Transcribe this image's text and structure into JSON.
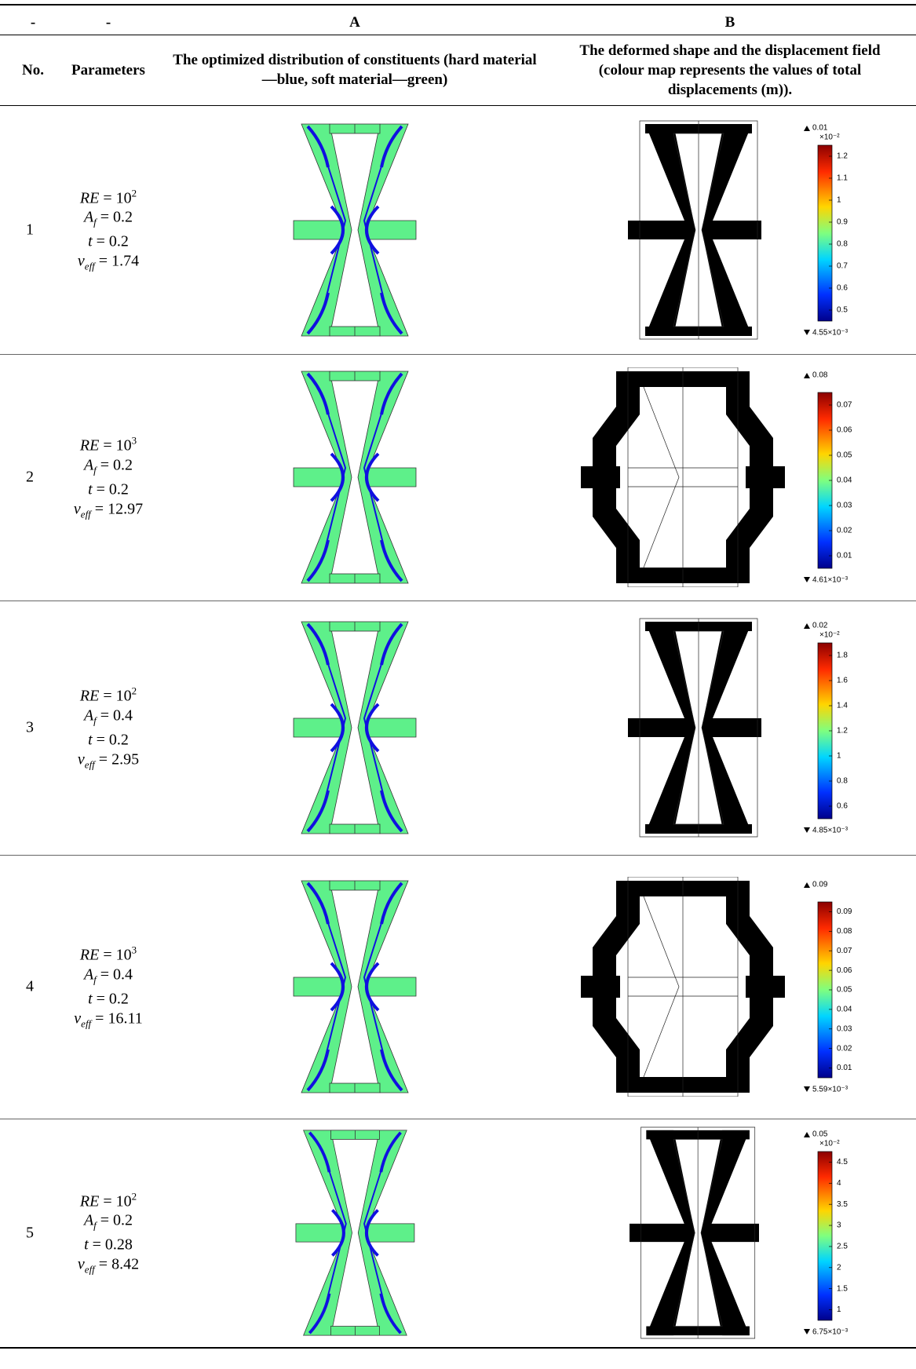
{
  "table": {
    "header": {
      "top": [
        "-",
        "-",
        "A",
        "B"
      ],
      "columns": [
        "No.",
        "Parameters",
        "The optimized distribution of constituents (hard material—blue, soft material—green)",
        "The deformed shape and the displacement field (colour map represents the values of total displacements (m))."
      ]
    },
    "rows": [
      {
        "no": "1",
        "parameters": [
          {
            "symbol": "RE",
            "text": " = 10",
            "sup": "2"
          },
          {
            "symbol": "A",
            "sub": "f",
            "text": " = 0.2"
          },
          {
            "symbol": "t",
            "text": " = 0.2"
          },
          {
            "symbol": "ν",
            "sub": "eff",
            "text": " = 1.74"
          }
        ],
        "colorbar": {
          "max": "0.01",
          "multiplier": "×10⁻²",
          "ticks": [
            "1.2",
            "1.1",
            "1",
            "0.9",
            "0.8",
            "0.7",
            "0.6",
            "0.5"
          ],
          "min": "4.55×10⁻³"
        }
      },
      {
        "no": "2",
        "parameters": [
          {
            "symbol": "RE",
            "text": " = 10",
            "sup": "3"
          },
          {
            "symbol": "A",
            "sub": "f",
            "text": " = 0.2"
          },
          {
            "symbol": "t",
            "text": " = 0.2"
          },
          {
            "symbol": "ν",
            "sub": "eff",
            "text": " = 12.97"
          }
        ],
        "colorbar": {
          "max": "0.08",
          "ticks": [
            "0.07",
            "0.06",
            "0.05",
            "0.04",
            "0.03",
            "0.02",
            "0.01"
          ],
          "min": "4.61×10⁻³"
        }
      },
      {
        "no": "3",
        "parameters": [
          {
            "symbol": "RE",
            "text": " = 10",
            "sup": "2"
          },
          {
            "symbol": "A",
            "sub": "f",
            "text": " = 0.4"
          },
          {
            "symbol": "t",
            "text": " = 0.2"
          },
          {
            "symbol": "ν",
            "sub": "eff",
            "text": " = 2.95"
          }
        ],
        "colorbar": {
          "max": "0.02",
          "multiplier": "×10⁻²",
          "ticks": [
            "1.8",
            "1.6",
            "1.4",
            "1.2",
            "1",
            "0.8",
            "0.6"
          ],
          "min": "4.85×10⁻³"
        }
      },
      {
        "no": "4",
        "parameters": [
          {
            "symbol": "RE",
            "text": " = 10",
            "sup": "3"
          },
          {
            "symbol": "A",
            "sub": "f",
            "text": " = 0.4"
          },
          {
            "symbol": "t",
            "text": " = 0.2"
          },
          {
            "symbol": "ν",
            "sub": "eff",
            "text": " = 16.11"
          }
        ],
        "colorbar": {
          "max": "0.09",
          "ticks": [
            "0.09",
            "0.08",
            "0.07",
            "0.06",
            "0.05",
            "0.04",
            "0.03",
            "0.02",
            "0.01"
          ],
          "min": "5.59×10⁻³"
        }
      },
      {
        "no": "5",
        "parameters": [
          {
            "symbol": "RE",
            "text": " = 10",
            "sup": "2"
          },
          {
            "symbol": "A",
            "sub": "f",
            "text": " = 0.2"
          },
          {
            "symbol": "t",
            "text": " = 0.28"
          },
          {
            "symbol": "ν",
            "sub": "eff",
            "text": " = 8.42"
          }
        ],
        "colorbar": {
          "max": "0.05",
          "multiplier": "×10⁻²",
          "ticks": [
            "4.5",
            "4",
            "3.5",
            "3",
            "2.5",
            "2",
            "1.5",
            "1"
          ],
          "min": "6.75×10⁻³"
        }
      }
    ]
  }
}
